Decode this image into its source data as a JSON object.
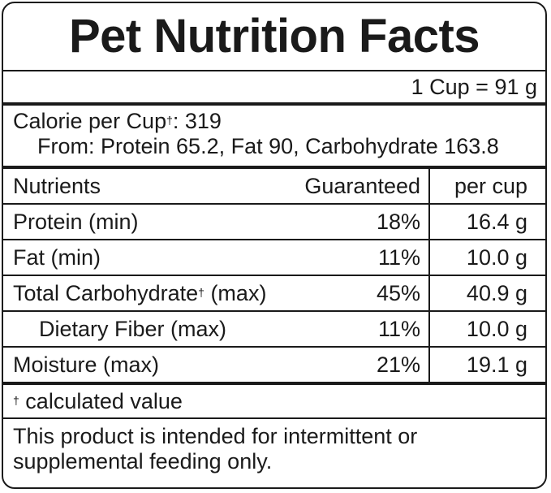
{
  "title": "Pet Nutrition Facts",
  "serving": "1 Cup = 91 g",
  "calories": {
    "label": "Calorie per Cup",
    "dagger": "†",
    "value": ": 319",
    "from": "From: Protein 65.2, Fat 90, Carbohydrate 163.8"
  },
  "table": {
    "headers": {
      "nutrients": "Nutrients",
      "guaranteed": "Guaranteed",
      "per_cup": "per cup"
    },
    "rows": [
      {
        "name": "Protein (min)",
        "guaranteed": "18%",
        "per_cup": "16.4 g"
      },
      {
        "name": "Fat (min)",
        "guaranteed": "11%",
        "per_cup": "10.0 g"
      },
      {
        "name": "Total Carbohydrate",
        "dagger": "†",
        "suffix": " (max)",
        "guaranteed": "45%",
        "per_cup": "40.9 g"
      },
      {
        "name": "Dietary Fiber (max)",
        "guaranteed": "11%",
        "per_cup": "10.0 g"
      },
      {
        "name": "Moisture (max)",
        "guaranteed": "21%",
        "per_cup": "19.1 g"
      }
    ]
  },
  "footnote": {
    "dagger": "†",
    "text": " calculated value"
  },
  "statement": {
    "line1": "This product is intended for intermittent or",
    "line2": "supplemental feeding only."
  }
}
